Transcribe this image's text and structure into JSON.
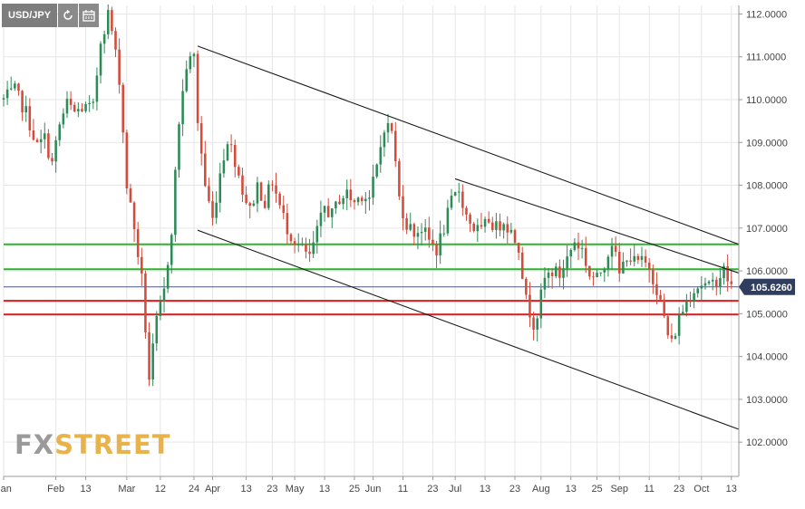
{
  "toolbar": {
    "symbol": "USD/JPY",
    "refresh_icon": "refresh-icon",
    "calendar_icon": "calendar-icon"
  },
  "watermark": {
    "part1": "FX",
    "part2": "STREET"
  },
  "colors": {
    "up": "#2e8b57",
    "down": "#d64a3a",
    "support_green": "#2db52d",
    "support_red": "#e01b1b",
    "current_price_line": "#4a5a80",
    "current_price_label_bg": "#2f3e5e",
    "trendline": "#1a1a1a",
    "grid": "#e6e6e6",
    "axis_text": "#444444"
  },
  "chart_data": {
    "type": "candlestick",
    "symbol": "USD/JPY",
    "ylim": [
      101.2,
      112.2
    ],
    "y_ticks": [
      "102.0000",
      "103.0000",
      "104.0000",
      "105.0000",
      "106.0000",
      "107.0000",
      "108.0000",
      "109.0000",
      "110.0000",
      "111.0000",
      "112.0000"
    ],
    "x_range": [
      0,
      197
    ],
    "x_ticks": [
      {
        "label": "Jan",
        "x": 0
      },
      {
        "label": "Feb",
        "x": 14
      },
      {
        "label": "13",
        "x": 22
      },
      {
        "label": "Mar",
        "x": 33
      },
      {
        "label": "12",
        "x": 42
      },
      {
        "label": "24",
        "x": 51
      },
      {
        "label": "Apr",
        "x": 56
      },
      {
        "label": "13",
        "x": 65
      },
      {
        "label": "23",
        "x": 72
      },
      {
        "label": "May",
        "x": 78
      },
      {
        "label": "13",
        "x": 86
      },
      {
        "label": "25",
        "x": 94
      },
      {
        "label": "Jun",
        "x": 99
      },
      {
        "label": "11",
        "x": 107
      },
      {
        "label": "23",
        "x": 115
      },
      {
        "label": "Jul",
        "x": 121
      },
      {
        "label": "13",
        "x": 129
      },
      {
        "label": "23",
        "x": 137
      },
      {
        "label": "Aug",
        "x": 144
      },
      {
        "label": "13",
        "x": 152
      },
      {
        "label": "25",
        "x": 159
      },
      {
        "label": "Sep",
        "x": 165
      },
      {
        "label": "11",
        "x": 173
      },
      {
        "label": "23",
        "x": 181
      },
      {
        "label": "Oct",
        "x": 187
      },
      {
        "label": "13",
        "x": 195
      }
    ],
    "anchors": [
      [
        0,
        110.0
      ],
      [
        3,
        110.2
      ],
      [
        6,
        109.7
      ],
      [
        9,
        108.9
      ],
      [
        11,
        109.1
      ],
      [
        13,
        108.5
      ],
      [
        15,
        109.4
      ],
      [
        17,
        109.9
      ],
      [
        19,
        109.7
      ],
      [
        21,
        109.8
      ],
      [
        24,
        109.8
      ],
      [
        26,
        111.4
      ],
      [
        28,
        112.0
      ],
      [
        29,
        111.6
      ],
      [
        31,
        110.5
      ],
      [
        33,
        108.0
      ],
      [
        35,
        107.0
      ],
      [
        37,
        105.8
      ],
      [
        39,
        103.5
      ],
      [
        41,
        104.8
      ],
      [
        43,
        105.5
      ],
      [
        45,
        107.0
      ],
      [
        47,
        109.5
      ],
      [
        49,
        110.8
      ],
      [
        51,
        111.0
      ],
      [
        52,
        109.5
      ],
      [
        54,
        108.0
      ],
      [
        56,
        107.2
      ],
      [
        58,
        108.3
      ],
      [
        60,
        109.1
      ],
      [
        62,
        108.6
      ],
      [
        64,
        107.9
      ],
      [
        66,
        107.4
      ],
      [
        68,
        108.0
      ],
      [
        70,
        107.6
      ],
      [
        72,
        108.1
      ],
      [
        74,
        107.5
      ],
      [
        76,
        107.0
      ],
      [
        78,
        106.7
      ],
      [
        80,
        106.5
      ],
      [
        82,
        106.3
      ],
      [
        84,
        106.9
      ],
      [
        86,
        107.5
      ],
      [
        88,
        107.3
      ],
      [
        90,
        107.7
      ],
      [
        92,
        107.8
      ],
      [
        94,
        107.6
      ],
      [
        96,
        107.8
      ],
      [
        98,
        107.7
      ],
      [
        100,
        108.4
      ],
      [
        102,
        109.4
      ],
      [
        104,
        109.3
      ],
      [
        106,
        107.7
      ],
      [
        108,
        107.1
      ],
      [
        110,
        106.9
      ],
      [
        112,
        107.0
      ],
      [
        114,
        106.7
      ],
      [
        116,
        106.5
      ],
      [
        118,
        107.0
      ],
      [
        120,
        107.6
      ],
      [
        122,
        107.9
      ],
      [
        124,
        107.3
      ],
      [
        126,
        107.0
      ],
      [
        128,
        106.9
      ],
      [
        130,
        107.2
      ],
      [
        132,
        107.0
      ],
      [
        134,
        107.2
      ],
      [
        136,
        106.9
      ],
      [
        138,
        106.6
      ],
      [
        140,
        105.3
      ],
      [
        142,
        104.8
      ],
      [
        143,
        105.0
      ],
      [
        145,
        105.8
      ],
      [
        147,
        106.0
      ],
      [
        149,
        105.9
      ],
      [
        151,
        106.3
      ],
      [
        153,
        106.7
      ],
      [
        155,
        106.5
      ],
      [
        157,
        105.9
      ],
      [
        159,
        105.8
      ],
      [
        161,
        106.2
      ],
      [
        163,
        106.7
      ],
      [
        165,
        105.9
      ],
      [
        167,
        106.4
      ],
      [
        169,
        106.2
      ],
      [
        171,
        106.2
      ],
      [
        173,
        106.1
      ],
      [
        175,
        105.6
      ],
      [
        177,
        104.9
      ],
      [
        178,
        104.5
      ],
      [
        179,
        104.3
      ],
      [
        181,
        104.9
      ],
      [
        183,
        105.3
      ],
      [
        185,
        105.6
      ],
      [
        187,
        105.7
      ],
      [
        189,
        105.6
      ],
      [
        191,
        105.8
      ],
      [
        193,
        106.0
      ],
      [
        195,
        105.63
      ]
    ],
    "current_price": 105.626,
    "current_price_label": "105.6260",
    "horizontal_levels": [
      {
        "value": 106.62,
        "color": "green"
      },
      {
        "value": 106.04,
        "color": "green"
      },
      {
        "value": 105.3,
        "color": "red"
      },
      {
        "value": 104.98,
        "color": "red"
      }
    ],
    "trendlines": [
      {
        "x1": 52,
        "y1": 111.25,
        "x2": 197,
        "y2": 106.62
      },
      {
        "x1": 52,
        "y1": 106.95,
        "x2": 197,
        "y2": 102.3
      },
      {
        "x1": 121,
        "y1": 108.15,
        "x2": 197,
        "y2": 105.95
      }
    ]
  }
}
